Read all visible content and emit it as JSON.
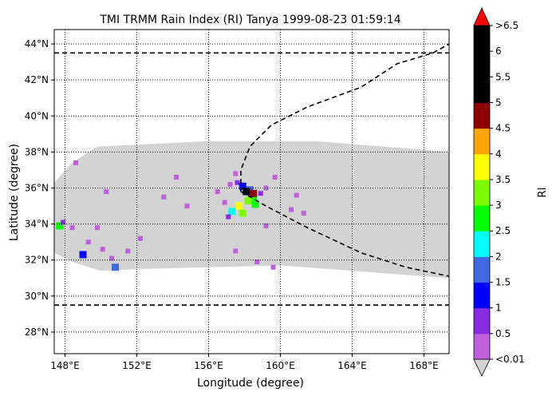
{
  "chart_data": {
    "type": "heatmap",
    "title": "TMI TRMM Rain Index (RI) Tanya 1999-08-23 01:59:14",
    "xlabel": "Longitude (degree)",
    "ylabel": "Latitude (degree)",
    "xlim": [
      147.4,
      169.4
    ],
    "ylim": [
      26.8,
      44.8
    ],
    "x_ticks": [
      {
        "value": 148,
        "label": "148°E"
      },
      {
        "value": 152,
        "label": "152°E"
      },
      {
        "value": 156,
        "label": "156°E"
      },
      {
        "value": 160,
        "label": "160°E"
      },
      {
        "value": 164,
        "label": "164°E"
      },
      {
        "value": 168,
        "label": "168°E"
      }
    ],
    "y_ticks": [
      {
        "value": 28,
        "label": "28°N"
      },
      {
        "value": 30,
        "label": "30°N"
      },
      {
        "value": 32,
        "label": "32°N"
      },
      {
        "value": 34,
        "label": "34°N"
      },
      {
        "value": 36,
        "label": "36°N"
      },
      {
        "value": 38,
        "label": "38°N"
      },
      {
        "value": 40,
        "label": "40°N"
      },
      {
        "value": 42,
        "label": "42°N"
      },
      {
        "value": 44,
        "label": "44°N"
      }
    ],
    "grid": true,
    "swath": {
      "color": "#d3d3d3",
      "top_edge": [
        [
          147.4,
          36.3
        ],
        [
          148.4,
          37.4
        ],
        [
          149.8,
          38.3
        ],
        [
          156,
          38.6
        ],
        [
          162,
          38.6
        ],
        [
          169.4,
          38.0
        ]
      ],
      "bottom_edge": [
        [
          169.4,
          31.0
        ],
        [
          160,
          31.7
        ],
        [
          152,
          31.5
        ],
        [
          150,
          31.4
        ],
        [
          148.4,
          31.9
        ],
        [
          147.4,
          32.4
        ]
      ]
    },
    "latitude_bounds": [
      43.5,
      29.5
    ],
    "track": [
      [
        157.8,
        35.8
      ],
      [
        157.8,
        37.0
      ],
      [
        158.3,
        38.3
      ],
      [
        159.5,
        39.5
      ],
      [
        161.5,
        40.5
      ],
      [
        164.5,
        41.6
      ],
      [
        166.5,
        42.9
      ],
      [
        168.5,
        43.5
      ],
      [
        169.4,
        44.0
      ]
    ],
    "track_south": [
      [
        157.8,
        35.8
      ],
      [
        159.2,
        35.0
      ],
      [
        161.5,
        33.8
      ],
      [
        164.5,
        32.4
      ],
      [
        167,
        31.6
      ],
      [
        169.4,
        31.1
      ]
    ],
    "storm_center": [
      158.4,
      35.8
    ],
    "rain_pixels": [
      {
        "lon": 157.2,
        "lat": 36.2,
        "bin": 0
      },
      {
        "lon": 157.6,
        "lat": 36.3,
        "bin": 1
      },
      {
        "lon": 157.9,
        "lat": 36.1,
        "bin": 2
      },
      {
        "lon": 158.3,
        "lat": 35.9,
        "bin": 3
      },
      {
        "lon": 158.5,
        "lat": 35.5,
        "bin": 5
      },
      {
        "lon": 158.2,
        "lat": 35.3,
        "bin": 6
      },
      {
        "lon": 157.7,
        "lat": 35.0,
        "bin": 7
      },
      {
        "lon": 157.3,
        "lat": 34.7,
        "bin": 4
      },
      {
        "lon": 157.9,
        "lat": 34.6,
        "bin": 6
      },
      {
        "lon": 158.6,
        "lat": 35.1,
        "bin": 5
      },
      {
        "lon": 158.1,
        "lat": 35.8,
        "bin": 10
      },
      {
        "lon": 158.5,
        "lat": 35.7,
        "bin": 9
      },
      {
        "lon": 158.9,
        "lat": 35.7,
        "bin": 1
      },
      {
        "lon": 159.2,
        "lat": 36.0,
        "bin": 0
      },
      {
        "lon": 156.9,
        "lat": 35.2,
        "bin": 0
      },
      {
        "lon": 157.1,
        "lat": 34.4,
        "bin": 1
      },
      {
        "lon": 156.5,
        "lat": 35.8,
        "bin": 0
      },
      {
        "lon": 159.7,
        "lat": 36.6,
        "bin": 0
      },
      {
        "lon": 157.5,
        "lat": 36.8,
        "bin": 0
      },
      {
        "lon": 160.9,
        "lat": 35.6,
        "bin": 0
      },
      {
        "lon": 161.3,
        "lat": 34.6,
        "bin": 0
      },
      {
        "lon": 160.6,
        "lat": 34.8,
        "bin": 0
      },
      {
        "lon": 159.2,
        "lat": 33.9,
        "bin": 0
      },
      {
        "lon": 157.5,
        "lat": 32.5,
        "bin": 0
      },
      {
        "lon": 159.6,
        "lat": 31.6,
        "bin": 0
      },
      {
        "lon": 153.5,
        "lat": 35.5,
        "bin": 0
      },
      {
        "lon": 154.8,
        "lat": 35.0,
        "bin": 0
      },
      {
        "lon": 154.2,
        "lat": 36.6,
        "bin": 0
      },
      {
        "lon": 151.5,
        "lat": 32.5,
        "bin": 0
      },
      {
        "lon": 150.8,
        "lat": 31.6,
        "bin": 3
      },
      {
        "lon": 150.6,
        "lat": 32.1,
        "bin": 0
      },
      {
        "lon": 150.3,
        "lat": 35.8,
        "bin": 0
      },
      {
        "lon": 150.1,
        "lat": 32.6,
        "bin": 0
      },
      {
        "lon": 149.8,
        "lat": 33.8,
        "bin": 0
      },
      {
        "lon": 149.3,
        "lat": 33.0,
        "bin": 0
      },
      {
        "lon": 149.0,
        "lat": 32.3,
        "bin": 2
      },
      {
        "lon": 148.4,
        "lat": 33.8,
        "bin": 0
      },
      {
        "lon": 147.7,
        "lat": 33.9,
        "bin": 5
      },
      {
        "lon": 147.9,
        "lat": 34.1,
        "bin": 1
      },
      {
        "lon": 148.6,
        "lat": 37.4,
        "bin": 0
      },
      {
        "lon": 152.2,
        "lat": 33.2,
        "bin": 0
      },
      {
        "lon": 158.7,
        "lat": 31.9,
        "bin": 0
      }
    ]
  },
  "colorbar": {
    "label": "RI",
    "colors": [
      "#c05fdc",
      "#8a2be2",
      "#0000ff",
      "#4169e1",
      "#00ffff",
      "#00ff00",
      "#7cfc00",
      "#ffff00",
      "#ffa500",
      "#8b0000",
      "#000000",
      "#000000",
      "#000000"
    ],
    "over_color": "#ff0000",
    "under_color": "#d3d3d3",
    "tick_labels": [
      "<0.01",
      "0.5",
      "1",
      "1.5",
      "2",
      "2.5",
      "3",
      "3.5",
      "4",
      "4.5",
      "5",
      "5.5",
      "6",
      ">6.5"
    ]
  }
}
